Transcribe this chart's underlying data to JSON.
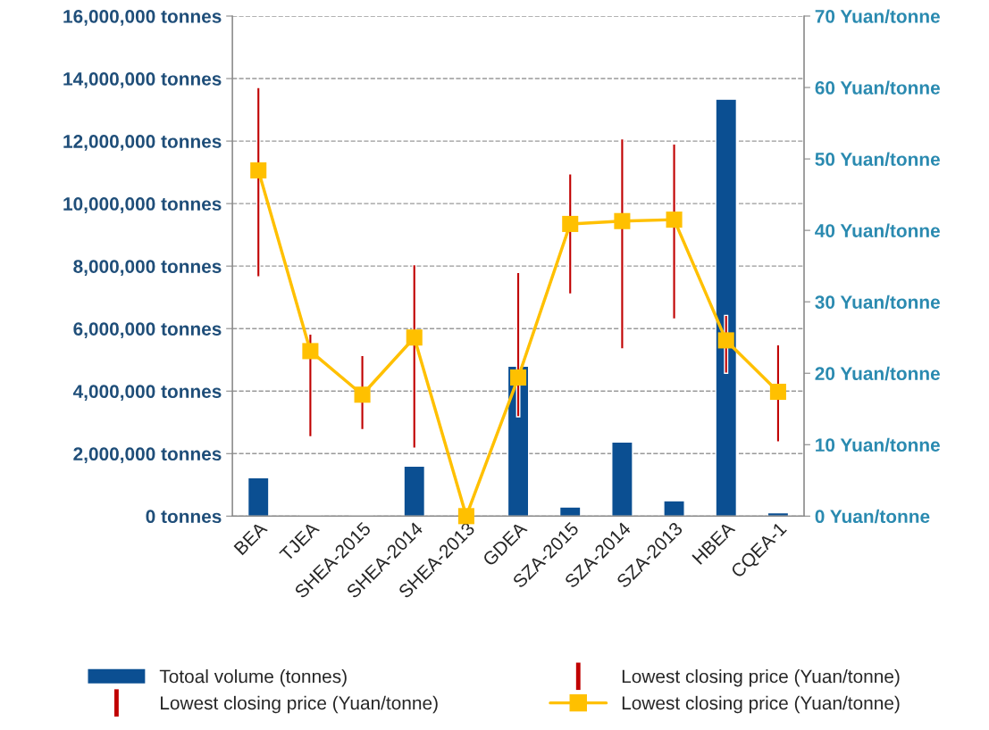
{
  "chart_data": {
    "type": "bar",
    "categories": [
      "BEA",
      "TJEA",
      "SHEA-2015",
      "SHEA-2014",
      "SHEA-2013",
      "GDEA",
      "SZA-2015",
      "SZA-2014",
      "SZA-2013",
      "HBEA",
      "CQEA-1"
    ],
    "series": [
      {
        "name": "Totoal volume (tonnes)",
        "color": "#0b4f92",
        "values": [
          1230000,
          30000,
          20000,
          1600000,
          null,
          4800000,
          290000,
          2370000,
          490000,
          13340000,
          110000
        ]
      },
      {
        "name": "Lowest closing price (Yuan/tonne)",
        "type": "bar",
        "axis": "y2",
        "color": "#c00000",
        "base": [
          33.5,
          11.1,
          12.1,
          9.5,
          null,
          13.9,
          31.1,
          23.4,
          27.6,
          20.0,
          10.4
        ],
        "values": [
          26.5,
          14.4,
          10.4,
          25.7,
          null,
          20.2,
          16.8,
          29.4,
          24.5,
          8.1,
          13.6
        ]
      },
      {
        "name": "Lowest closing price (Yuan/tonne)",
        "type": "line",
        "axis": "y2",
        "color": "#ffc000",
        "marker": "square",
        "line_style": "solid",
        "values": [
          48.4,
          23.1,
          17.0,
          25.0,
          0,
          19.4,
          40.9,
          41.3,
          41.5,
          24.6,
          17.4
        ]
      }
    ],
    "ylim": [
      0,
      16000000
    ],
    "yticks": [
      {
        "value": 0,
        "label": "0 tonnes"
      },
      {
        "value": 2000000,
        "label": "2,000,000 tonnes"
      },
      {
        "value": 4000000,
        "label": "4,000,000 tonnes"
      },
      {
        "value": 6000000,
        "label": "6,000,000 tonnes"
      },
      {
        "value": 8000000,
        "label": "8,000,000 tonnes"
      },
      {
        "value": 10000000,
        "label": "10,000,000 tonnes"
      },
      {
        "value": 12000000,
        "label": "12,000,000 tonnes"
      },
      {
        "value": 14000000,
        "label": "14,000,000 tonnes"
      },
      {
        "value": 16000000,
        "label": "16,000,000 tonnes"
      }
    ],
    "y2lim": [
      0,
      70
    ],
    "y2ticks": [
      {
        "value": 0,
        "label": "0 Yuan/tonne"
      },
      {
        "value": 10,
        "label": "10 Yuan/tonne"
      },
      {
        "value": 20,
        "label": "20 Yuan/tonne"
      },
      {
        "value": 30,
        "label": "30 Yuan/tonne"
      },
      {
        "value": 40,
        "label": "40 Yuan/tonne"
      },
      {
        "value": 50,
        "label": "50 Yuan/tonne"
      },
      {
        "value": 60,
        "label": "60 Yuan/tonne"
      },
      {
        "value": 70,
        "label": "70 Yuan/tonne"
      }
    ],
    "annotations": [
      "Lowest closing price (Yuan/tonne)"
    ],
    "grid": "y",
    "legend": "bottom"
  }
}
